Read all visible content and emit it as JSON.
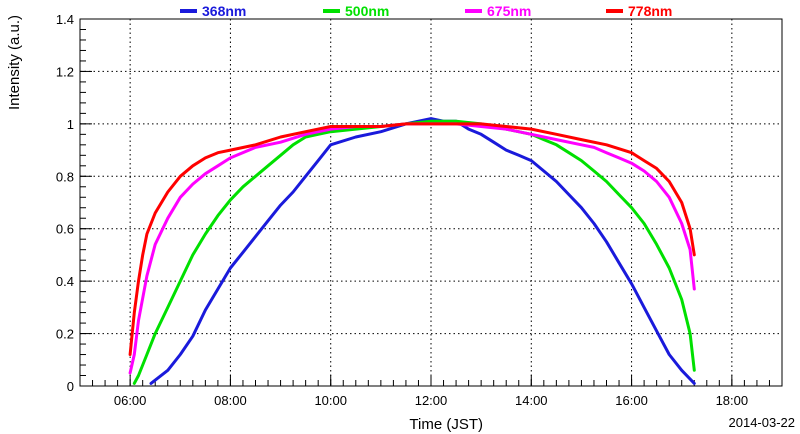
{
  "chart_data": {
    "type": "line",
    "xlabel": "Time (JST)",
    "ylabel": "Intensity (a.u.)",
    "date_label": "2014-03-22",
    "xlim": [
      "05:00",
      "19:00"
    ],
    "ylim": [
      0,
      1.4
    ],
    "x_ticks": [
      "06:00",
      "08:00",
      "10:00",
      "12:00",
      "14:00",
      "16:00",
      "18:00"
    ],
    "y_ticks": [
      "0",
      "0.2",
      "0.4",
      "0.6",
      "0.8",
      "1",
      "1.2",
      "1.4"
    ],
    "grid": true,
    "legend_position": "top",
    "series": [
      {
        "name": "368nm",
        "color": "#1a1adb",
        "x": [
          "06:25",
          "06:45",
          "07:00",
          "07:15",
          "07:30",
          "07:45",
          "08:00",
          "08:15",
          "08:30",
          "08:45",
          "09:00",
          "09:15",
          "09:30",
          "09:45",
          "10:00",
          "10:30",
          "11:00",
          "11:30",
          "11:45",
          "12:00",
          "12:15",
          "12:30",
          "12:45",
          "13:00",
          "13:15",
          "13:30",
          "13:45",
          "14:00",
          "14:15",
          "14:30",
          "14:45",
          "15:00",
          "15:15",
          "15:30",
          "15:45",
          "16:00",
          "16:15",
          "16:30",
          "16:45",
          "17:00",
          "17:15"
        ],
        "y": [
          0.01,
          0.06,
          0.12,
          0.19,
          0.29,
          0.37,
          0.45,
          0.51,
          0.57,
          0.63,
          0.69,
          0.74,
          0.8,
          0.86,
          0.92,
          0.95,
          0.97,
          1.0,
          1.01,
          1.02,
          1.01,
          1.01,
          0.98,
          0.96,
          0.93,
          0.9,
          0.88,
          0.86,
          0.82,
          0.78,
          0.73,
          0.68,
          0.62,
          0.55,
          0.47,
          0.39,
          0.3,
          0.21,
          0.12,
          0.06,
          0.01
        ]
      },
      {
        "name": "500nm",
        "color": "#00e000",
        "x": [
          "06:05",
          "06:10",
          "06:20",
          "06:30",
          "06:45",
          "07:00",
          "07:15",
          "07:30",
          "07:45",
          "08:00",
          "08:15",
          "08:30",
          "08:45",
          "09:00",
          "09:15",
          "09:30",
          "09:45",
          "10:00",
          "10:30",
          "11:00",
          "11:30",
          "12:00",
          "12:30",
          "13:00",
          "13:30",
          "14:00",
          "14:15",
          "14:30",
          "14:45",
          "15:00",
          "15:15",
          "15:30",
          "15:45",
          "16:00",
          "16:15",
          "16:30",
          "16:45",
          "17:00",
          "17:10",
          "17:15"
        ],
        "y": [
          0.01,
          0.04,
          0.12,
          0.2,
          0.3,
          0.4,
          0.5,
          0.58,
          0.65,
          0.71,
          0.76,
          0.8,
          0.84,
          0.88,
          0.92,
          0.95,
          0.96,
          0.97,
          0.98,
          0.99,
          1.0,
          1.01,
          1.01,
          1.0,
          0.98,
          0.96,
          0.94,
          0.92,
          0.89,
          0.86,
          0.82,
          0.78,
          0.73,
          0.68,
          0.62,
          0.54,
          0.45,
          0.33,
          0.2,
          0.06
        ]
      },
      {
        "name": "675nm",
        "color": "#ff00ff",
        "x": [
          "06:00",
          "06:05",
          "06:10",
          "06:20",
          "06:30",
          "06:45",
          "07:00",
          "07:15",
          "07:30",
          "07:45",
          "08:00",
          "08:30",
          "09:00",
          "09:30",
          "10:00",
          "10:30",
          "11:00",
          "11:30",
          "12:00",
          "12:30",
          "13:00",
          "13:30",
          "14:00",
          "14:30",
          "15:00",
          "15:15",
          "15:30",
          "15:45",
          "16:00",
          "16:15",
          "16:30",
          "16:45",
          "17:00",
          "17:10",
          "17:15"
        ],
        "y": [
          0.05,
          0.12,
          0.25,
          0.42,
          0.54,
          0.64,
          0.72,
          0.77,
          0.81,
          0.84,
          0.87,
          0.91,
          0.93,
          0.96,
          0.98,
          0.99,
          0.99,
          1.0,
          1.0,
          1.0,
          0.99,
          0.98,
          0.96,
          0.94,
          0.92,
          0.91,
          0.89,
          0.87,
          0.85,
          0.82,
          0.78,
          0.72,
          0.62,
          0.52,
          0.37
        ]
      },
      {
        "name": "778nm",
        "color": "#ff0000",
        "x": [
          "06:00",
          "06:05",
          "06:10",
          "06:15",
          "06:20",
          "06:30",
          "06:45",
          "07:00",
          "07:15",
          "07:30",
          "07:45",
          "08:00",
          "08:30",
          "09:00",
          "09:30",
          "10:00",
          "10:30",
          "11:00",
          "11:30",
          "12:00",
          "12:30",
          "13:00",
          "13:30",
          "14:00",
          "14:30",
          "15:00",
          "15:30",
          "16:00",
          "16:15",
          "16:30",
          "16:45",
          "17:00",
          "17:10",
          "17:15"
        ],
        "y": [
          0.12,
          0.28,
          0.4,
          0.5,
          0.58,
          0.66,
          0.74,
          0.8,
          0.84,
          0.87,
          0.89,
          0.9,
          0.92,
          0.95,
          0.97,
          0.99,
          0.99,
          0.99,
          1.0,
          1.0,
          1.0,
          1.0,
          0.99,
          0.98,
          0.96,
          0.94,
          0.92,
          0.89,
          0.86,
          0.83,
          0.78,
          0.7,
          0.6,
          0.5
        ]
      }
    ]
  }
}
